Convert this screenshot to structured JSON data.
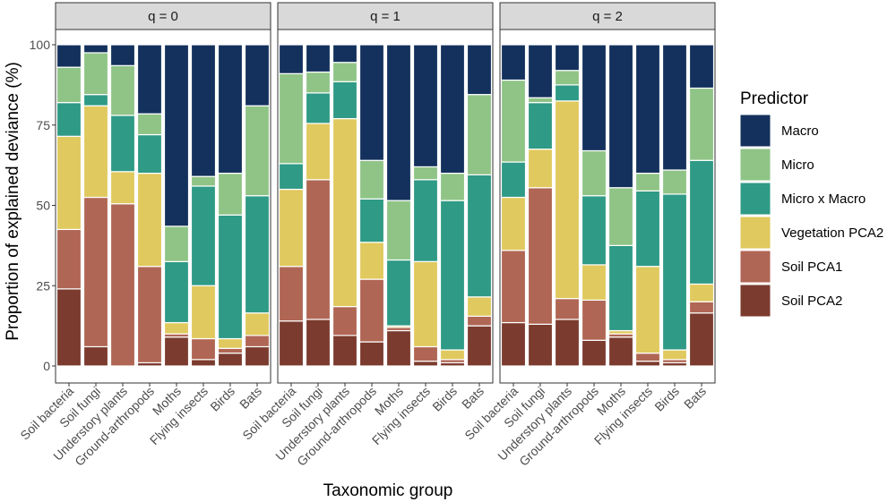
{
  "chart_data": {
    "type": "bar",
    "stacked": true,
    "xlabel": "Taxonomic group",
    "ylabel": "Proportion of explained deviance (%)",
    "ylim": [
      0,
      100
    ],
    "yticks": [
      0,
      25,
      50,
      75,
      100
    ],
    "grid": false,
    "legend": {
      "title": "Predictor",
      "position": "right"
    },
    "categories": [
      "Soil bacteria",
      "Soil fungi",
      "Understory plants",
      "Ground-arthropods",
      "Moths",
      "Flying insects",
      "Birds",
      "Bats"
    ],
    "series_order": [
      "Soil PCA2",
      "Soil PCA1",
      "Vegetation PCA2",
      "Micro x Macro",
      "Micro",
      "Macro"
    ],
    "legend_order": [
      "Macro",
      "Micro",
      "Micro x Macro",
      "Vegetation PCA2",
      "Soil PCA1",
      "Soil PCA2"
    ],
    "colors": {
      "Macro": "#13315c",
      "Micro": "#8fc486",
      "Micro x Macro": "#2f9a85",
      "Vegetation PCA2": "#e0c95e",
      "Soil PCA1": "#b06654",
      "Soil PCA2": "#7b3b2e"
    },
    "panels": [
      {
        "label": "q = 0",
        "series": [
          {
            "name": "Soil PCA2",
            "values": [
              24,
              6,
              0,
              1,
              9,
              2,
              4,
              6
            ]
          },
          {
            "name": "Soil PCA1",
            "values": [
              18.5,
              46.5,
              50.5,
              30,
              1,
              6.5,
              1.5,
              3.5
            ]
          },
          {
            "name": "Vegetation PCA2",
            "values": [
              29,
              28.5,
              10,
              29,
              3.5,
              16.5,
              3,
              7
            ]
          },
          {
            "name": "Micro x Macro",
            "values": [
              10.5,
              3.5,
              17.5,
              12,
              19,
              31,
              38.5,
              36.5
            ]
          },
          {
            "name": "Micro",
            "values": [
              11,
              13,
              15.5,
              6.5,
              11,
              3,
              13,
              28
            ]
          },
          {
            "name": "Macro",
            "values": [
              7,
              2.5,
              6.5,
              21.5,
              56.5,
              41,
              40,
              19
            ]
          }
        ]
      },
      {
        "label": "q = 1",
        "series": [
          {
            "name": "Soil PCA2",
            "values": [
              14,
              14.5,
              9.5,
              7.5,
              11,
              1.5,
              1,
              12.5
            ]
          },
          {
            "name": "Soil PCA1",
            "values": [
              17,
              43.5,
              9,
              19.5,
              1,
              4.5,
              1,
              3
            ]
          },
          {
            "name": "Vegetation PCA2",
            "values": [
              24,
              17.5,
              58.5,
              11.5,
              0.5,
              26.5,
              3,
              6
            ]
          },
          {
            "name": "Micro x Macro",
            "values": [
              8,
              9.5,
              11.5,
              13.5,
              20.5,
              25.5,
              46.5,
              38
            ]
          },
          {
            "name": "Micro",
            "values": [
              28,
              6.5,
              6,
              12,
              18.5,
              4,
              8.5,
              25
            ]
          },
          {
            "name": "Macro",
            "values": [
              9,
              8.5,
              5.5,
              36,
              48.5,
              38,
              40,
              15.5
            ]
          }
        ]
      },
      {
        "label": "q = 2",
        "series": [
          {
            "name": "Soil PCA2",
            "values": [
              13.5,
              13,
              14.5,
              8,
              9,
              1.5,
              1,
              16.5
            ]
          },
          {
            "name": "Soil PCA1",
            "values": [
              22.5,
              42.5,
              6.5,
              12.5,
              1,
              2.5,
              1,
              3.5
            ]
          },
          {
            "name": "Vegetation PCA2",
            "values": [
              16.5,
              12,
              61.5,
              11,
              1,
              27,
              3,
              5.5
            ]
          },
          {
            "name": "Micro x Macro",
            "values": [
              11,
              14.5,
              5,
              21.5,
              26.5,
              23.5,
              48.5,
              38.5
            ]
          },
          {
            "name": "Micro",
            "values": [
              25.5,
              1.5,
              4.5,
              14,
              18,
              5.5,
              7.5,
              22.5
            ]
          },
          {
            "name": "Macro",
            "values": [
              11,
              16.5,
              8,
              33,
              44.5,
              40,
              39,
              13.5
            ]
          }
        ]
      }
    ]
  }
}
